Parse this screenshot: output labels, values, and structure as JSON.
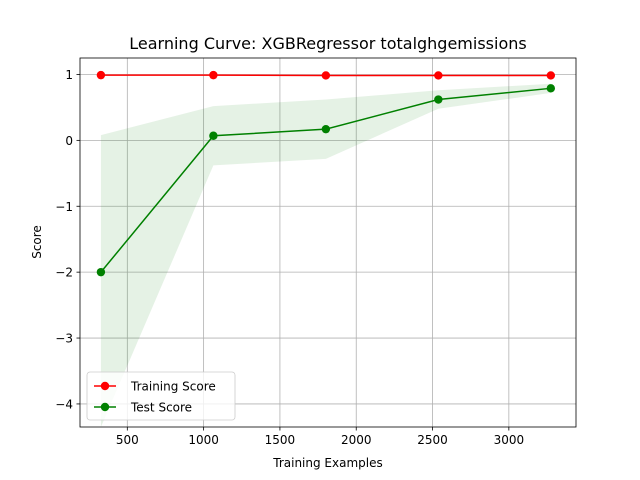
{
  "chart_data": {
    "type": "line",
    "title": "Learning Curve: XGBRegressor totalghgemissions",
    "xlabel": "Training Examples",
    "ylabel": "Score",
    "xlim": [
      190,
      3440
    ],
    "ylim": [
      -4.35,
      1.25
    ],
    "xticks": [
      500,
      1000,
      1500,
      2000,
      2500,
      3000
    ],
    "yticks": [
      -4,
      -3,
      -2,
      -1,
      0,
      1
    ],
    "grid": true,
    "legend_position": "lower-left",
    "x": [
      327,
      1064,
      1801,
      2538,
      3275
    ],
    "series": [
      {
        "name": "Training Score",
        "color": "#ff0000",
        "marker": "circle",
        "values": [
          0.99,
          0.99,
          0.985,
          0.985,
          0.985
        ],
        "band_lower": [
          0.985,
          0.985,
          0.98,
          0.98,
          0.98
        ],
        "band_upper": [
          0.995,
          0.995,
          0.99,
          0.99,
          0.99
        ]
      },
      {
        "name": "Test Score",
        "color": "#008000",
        "marker": "circle",
        "values": [
          -2.0,
          0.07,
          0.17,
          0.62,
          0.79
        ],
        "band_lower": [
          -4.35,
          -0.38,
          -0.28,
          0.48,
          0.72
        ],
        "band_upper": [
          0.08,
          0.52,
          0.62,
          0.76,
          0.86
        ]
      }
    ]
  }
}
